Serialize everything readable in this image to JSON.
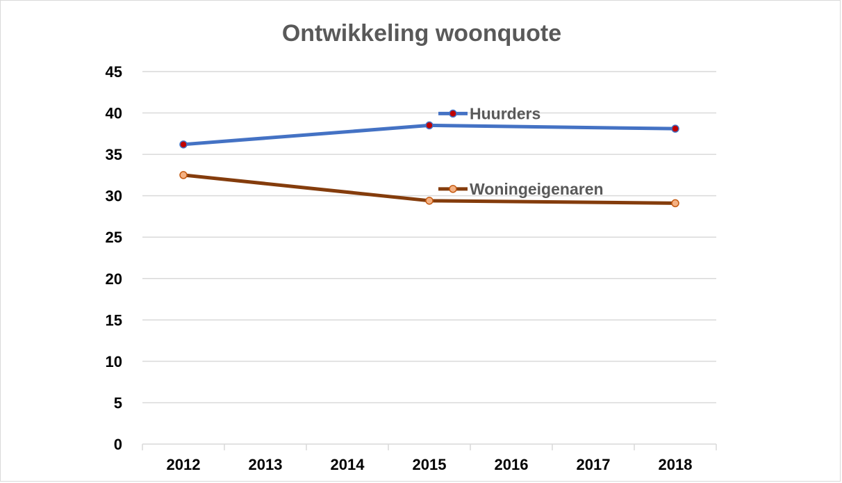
{
  "chart_data": {
    "type": "line",
    "title": "Ontwikkeling woonquote",
    "categories": [
      "2012",
      "2013",
      "2014",
      "2015",
      "2016",
      "2017",
      "2018"
    ],
    "ylim": [
      0,
      45
    ],
    "yticks": [
      0,
      5,
      10,
      15,
      20,
      25,
      30,
      35,
      40,
      45
    ],
    "grid": "horizontal",
    "series": [
      {
        "name": "Huurders",
        "x": [
          "2012",
          "2015",
          "2018"
        ],
        "values": [
          36.2,
          38.5,
          38.1
        ],
        "color": "#4472c4",
        "marker_fill": "#c00000",
        "marker_edge": "#4472c4"
      },
      {
        "name": "Woningeigenaren",
        "x": [
          "2012",
          "2015",
          "2018"
        ],
        "values": [
          32.5,
          29.4,
          29.1
        ],
        "color": "#843c0c",
        "marker_fill": "#f4b183",
        "marker_edge": "#c55a11"
      }
    ],
    "legend_placement": "inline, right of 2015 point"
  }
}
